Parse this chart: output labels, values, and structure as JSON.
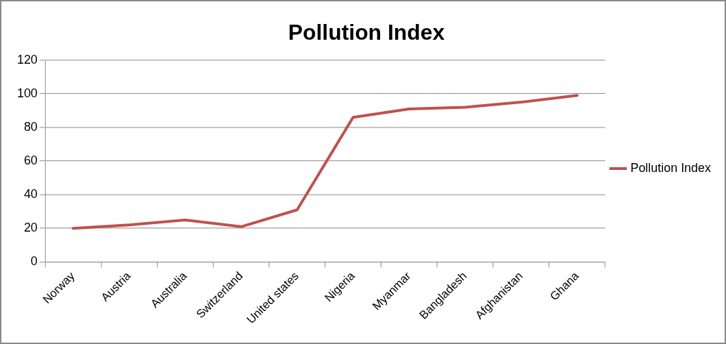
{
  "chart_data": {
    "type": "line",
    "title": "Pollution Index",
    "categories": [
      "Norway",
      "Austria",
      "Australia",
      "Switzerland",
      "United states",
      "Nigeria",
      "Myanmar",
      "Bangladesh",
      "Afghanistan",
      "Ghana"
    ],
    "series": [
      {
        "name": "Pollution Index",
        "color": "#c0504d",
        "values": [
          20,
          22,
          25,
          21,
          31,
          86,
          91,
          92,
          95,
          99
        ]
      }
    ],
    "ylim": [
      0,
      120
    ],
    "yticks": [
      0,
      20,
      40,
      60,
      80,
      100,
      120
    ],
    "grid": "y",
    "legend": "right",
    "marker": "none",
    "line_style": "solid"
  }
}
